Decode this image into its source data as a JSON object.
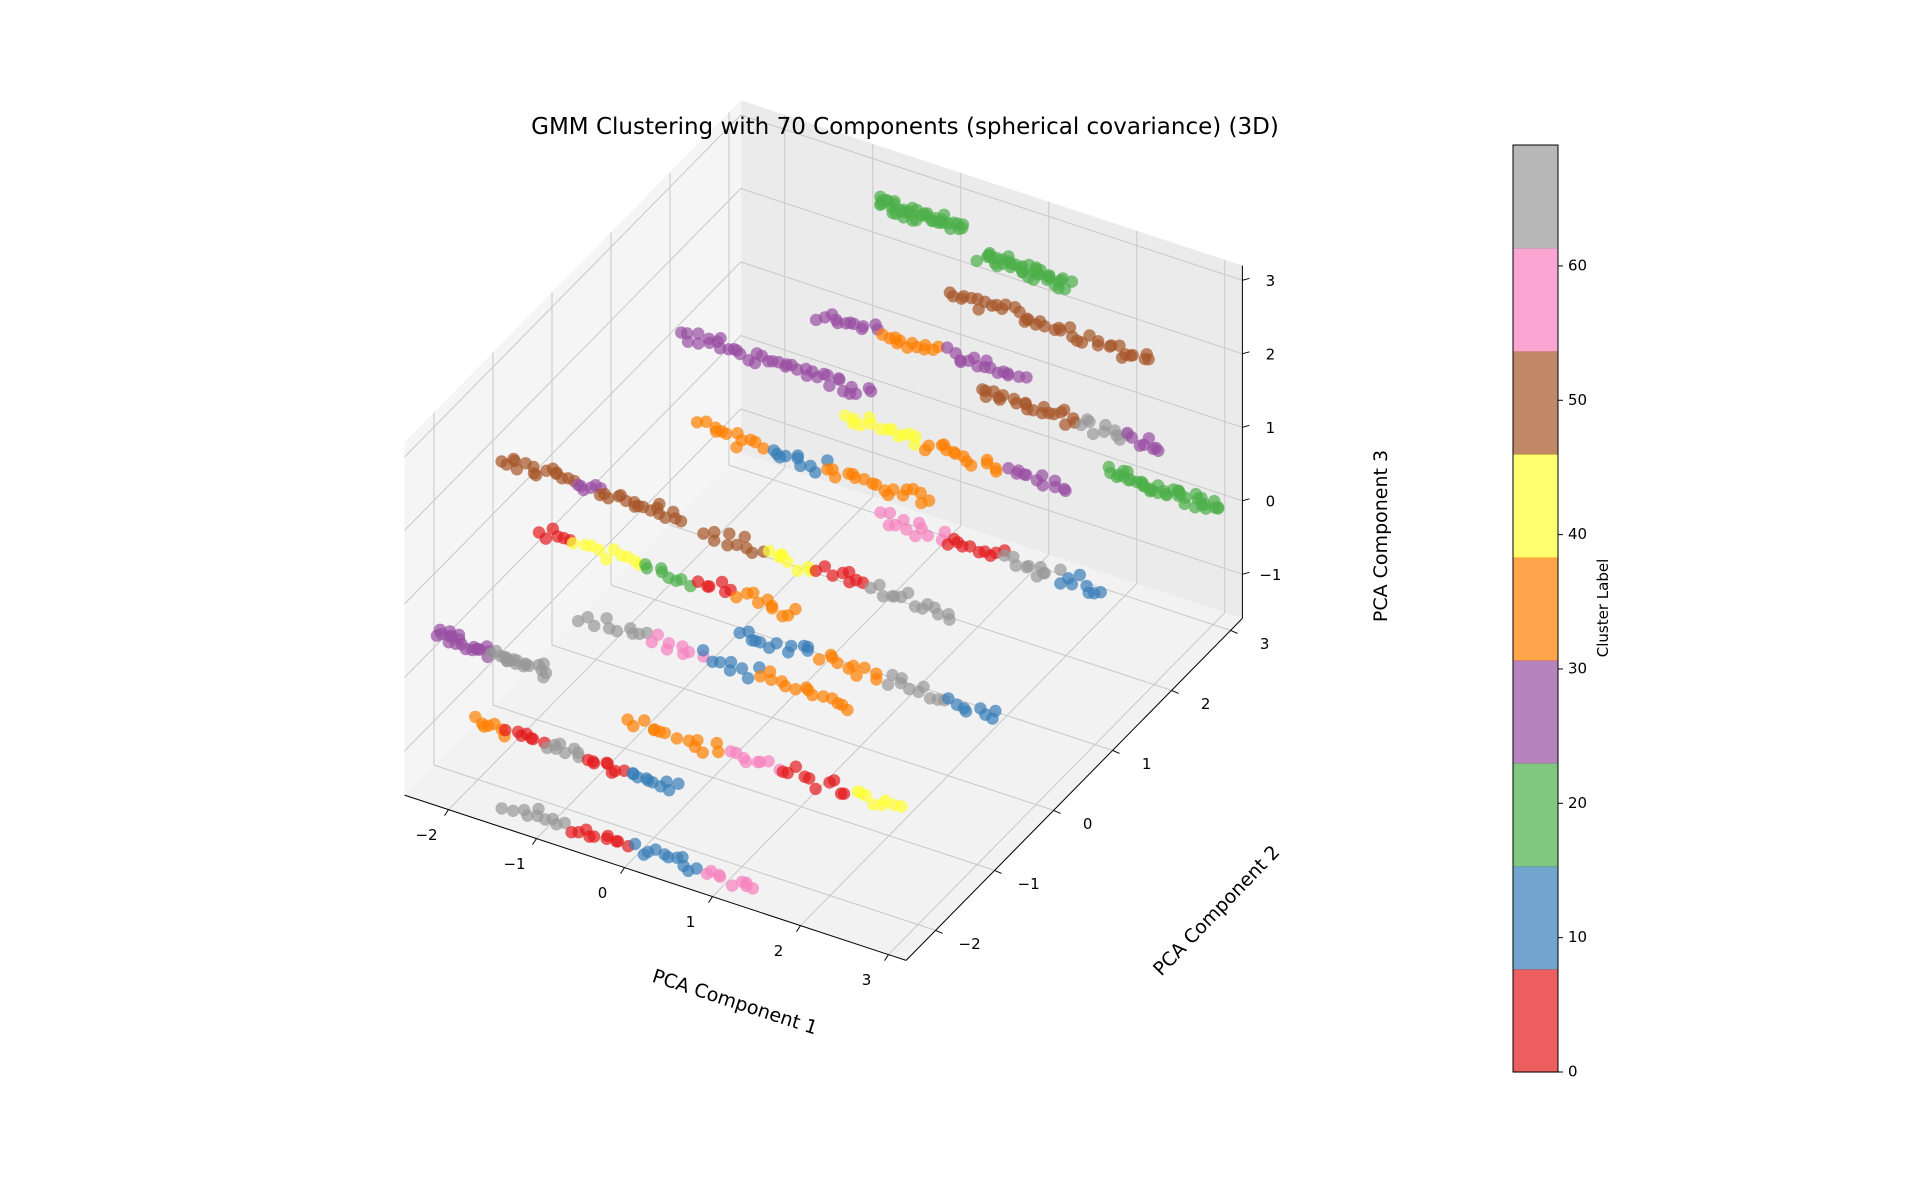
{
  "chart_data": {
    "type": "scatter",
    "projection": "3d",
    "title": "GMM Clustering with 70 Components (spherical covariance) (3D)",
    "xlabel": "PCA Component 1",
    "ylabel": "PCA Component 2",
    "zlabel": "PCA Component 3",
    "xlim": [
      -2.5,
      3.2
    ],
    "ylim": [
      -2.5,
      3.2
    ],
    "zlim": [
      -1.6,
      3.2
    ],
    "x_ticks": [
      "−2",
      "−1",
      "0",
      "1",
      "2",
      "3"
    ],
    "y_ticks": [
      "−2",
      "−1",
      "0",
      "1",
      "2",
      "3"
    ],
    "z_ticks": [
      "−1",
      "0",
      "1",
      "2",
      "3"
    ],
    "grid": true,
    "colormap": "Set1",
    "colormap_colors": [
      "#e41a1c",
      "#377eb8",
      "#4daf4a",
      "#984ea3",
      "#ff7f00",
      "#ffff33",
      "#a65628",
      "#f781bf",
      "#999999"
    ],
    "point_alpha": 0.7,
    "colorbar": {
      "label": "Cluster Label",
      "min": 0,
      "max": 69,
      "ticks": [
        "0",
        "10",
        "20",
        "30",
        "40",
        "50",
        "60"
      ],
      "tick_values": [
        0,
        10,
        20,
        30,
        40,
        50,
        60
      ],
      "placement": "right"
    },
    "series": [
      {
        "x_range": [
          -2.3,
          -1.0
        ],
        "y": -2.3,
        "z": 0.5,
        "segments": [
          [
            0.0,
            0.5,
            3
          ],
          [
            0.5,
            1.0,
            8
          ]
        ]
      },
      {
        "x_range": [
          -1.9,
          0.5
        ],
        "y": -2.3,
        "z": -0.5,
        "segments": [
          [
            0.0,
            0.18,
            4
          ],
          [
            0.18,
            0.35,
            0
          ],
          [
            0.35,
            0.55,
            8
          ],
          [
            0.55,
            0.75,
            0
          ],
          [
            0.75,
            1.0,
            1
          ]
        ]
      },
      {
        "x_range": [
          -1.5,
          1.4
        ],
        "y": -2.3,
        "z": -1.5,
        "segments": [
          [
            0.0,
            0.25,
            8
          ],
          [
            0.25,
            0.5,
            0
          ],
          [
            0.5,
            0.78,
            1
          ],
          [
            0.78,
            1.0,
            7
          ]
        ]
      },
      {
        "x_range": [
          -2.3,
          -0.2
        ],
        "y": -1.2,
        "z": 2.0,
        "segments": [
          [
            0.0,
            0.4,
            6
          ],
          [
            0.4,
            0.55,
            3
          ],
          [
            0.55,
            1.0,
            6
          ]
        ]
      },
      {
        "x_range": [
          -2.0,
          1.0
        ],
        "y": -1.0,
        "z": 1.0,
        "segments": [
          [
            0.0,
            0.15,
            0
          ],
          [
            0.15,
            0.4,
            5
          ],
          [
            0.4,
            0.6,
            2
          ],
          [
            0.6,
            0.75,
            0
          ],
          [
            0.75,
            1.0,
            4
          ]
        ]
      },
      {
        "x_range": [
          -1.5,
          1.6
        ],
        "y": -1.0,
        "z": 0.0,
        "segments": [
          [
            0.0,
            0.25,
            8
          ],
          [
            0.25,
            0.45,
            7
          ],
          [
            0.45,
            0.65,
            1
          ],
          [
            0.65,
            1.0,
            4
          ]
        ]
      },
      {
        "x_range": [
          -1.0,
          2.2
        ],
        "y": -1.0,
        "z": -1.2,
        "segments": [
          [
            0.0,
            0.35,
            4
          ],
          [
            0.35,
            0.55,
            7
          ],
          [
            0.55,
            0.8,
            0
          ],
          [
            0.8,
            1.0,
            5
          ]
        ]
      },
      {
        "x_range": [
          -1.4,
          0.8
        ],
        "y": 0.5,
        "z": 2.7,
        "segments": [
          [
            0.0,
            0.4,
            3
          ],
          [
            0.4,
            1.0,
            3
          ]
        ]
      },
      {
        "x_range": [
          -1.2,
          1.5
        ],
        "y": 0.5,
        "z": 1.5,
        "segments": [
          [
            0.0,
            0.3,
            4
          ],
          [
            0.3,
            0.55,
            1
          ],
          [
            0.55,
            1.0,
            4
          ]
        ]
      },
      {
        "x_range": [
          -1.0,
          1.9
        ],
        "y": 0.3,
        "z": 0.3,
        "segments": [
          [
            0.0,
            0.25,
            6
          ],
          [
            0.25,
            0.45,
            5
          ],
          [
            0.45,
            0.65,
            0
          ],
          [
            0.65,
            1.0,
            8
          ]
        ]
      },
      {
        "x_range": [
          -0.6,
          2.4
        ],
        "y": 0.3,
        "z": -0.9,
        "segments": [
          [
            0.0,
            0.3,
            1
          ],
          [
            0.3,
            0.55,
            4
          ],
          [
            0.55,
            0.8,
            8
          ],
          [
            0.8,
            1.0,
            1
          ]
        ]
      },
      {
        "x_range": [
          -0.5,
          1.9
        ],
        "y": 1.5,
        "z": 2.5,
        "segments": [
          [
            0.0,
            0.3,
            3
          ],
          [
            0.3,
            0.6,
            4
          ],
          [
            0.6,
            1.0,
            3
          ]
        ]
      },
      {
        "x_range": [
          -0.2,
          2.4
        ],
        "y": 1.5,
        "z": 1.2,
        "segments": [
          [
            0.0,
            0.35,
            5
          ],
          [
            0.35,
            0.7,
            4
          ],
          [
            0.7,
            1.0,
            3
          ]
        ]
      },
      {
        "x_range": [
          0.2,
          2.8
        ],
        "y": 1.5,
        "z": 0.0,
        "segments": [
          [
            0.0,
            0.3,
            7
          ],
          [
            0.3,
            0.55,
            0
          ],
          [
            0.55,
            0.8,
            8
          ],
          [
            0.8,
            1.0,
            1
          ]
        ]
      },
      {
        "x_range": [
          0.5,
          2.9
        ],
        "y": 2.2,
        "z": 2.6,
        "segments": [
          [
            0.0,
            1.0,
            6
          ]
        ]
      },
      {
        "x_range": [
          0.8,
          2.9
        ],
        "y": 2.3,
        "z": 1.3,
        "segments": [
          [
            0.0,
            0.55,
            6
          ],
          [
            0.55,
            0.8,
            8
          ],
          [
            0.8,
            1.0,
            3
          ]
        ]
      },
      {
        "x_range": [
          1.8,
          3.1
        ],
        "y": 3.0,
        "z": 0.0,
        "segments": [
          [
            0.0,
            1.0,
            2
          ]
        ]
      },
      {
        "x_range": [
          -0.5,
          0.5
        ],
        "y": 2.5,
        "z": 3.2,
        "segments": [
          [
            0.0,
            1.0,
            2
          ]
        ]
      },
      {
        "x_range": [
          0.5,
          1.5
        ],
        "y": 2.8,
        "z": 2.6,
        "segments": [
          [
            0.0,
            1.0,
            2
          ]
        ]
      }
    ]
  }
}
